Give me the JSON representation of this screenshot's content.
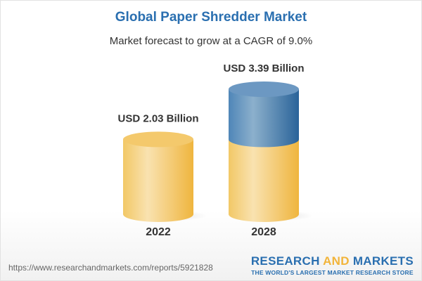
{
  "title": "Global Paper Shredder Market",
  "subtitle": "Market forecast to grow at a CAGR of 9.0%",
  "footer": {
    "url": "https://www.researchandmarkets.com/reports/5921828",
    "logo_main_1": "RESEARCH",
    "logo_main_and": "AND",
    "logo_main_2": "MARKETS",
    "logo_tagline": "THE WORLD'S LARGEST MARKET RESEARCH STORE"
  },
  "chart_data": {
    "type": "bar",
    "style": "3d-cylinder",
    "categories": [
      "2022",
      "2028"
    ],
    "values": [
      2.03,
      3.39
    ],
    "data_labels": [
      "USD 2.03 Billion",
      "USD 3.39 Billion"
    ],
    "unit": "USD Billion",
    "grid": false,
    "colors": {
      "base": "#f3c562",
      "growth": "#3f7eb3",
      "title": "#2a6fb0"
    }
  }
}
